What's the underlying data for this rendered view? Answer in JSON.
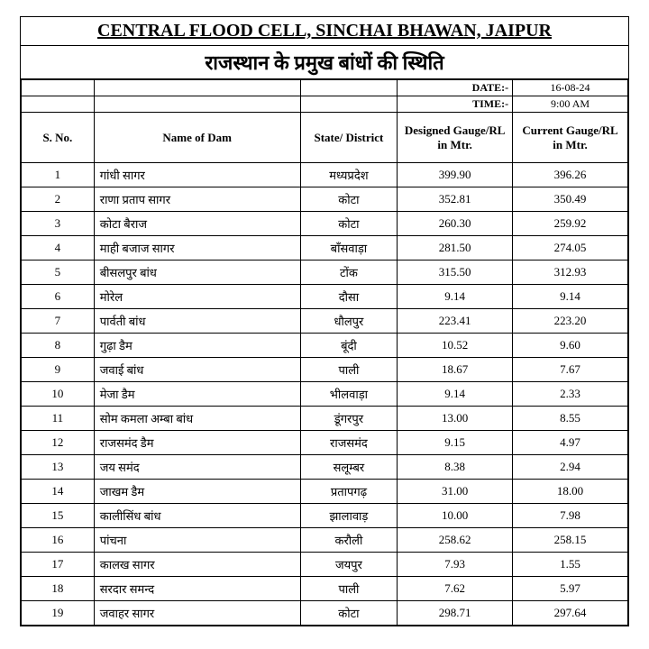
{
  "header": {
    "title": "CENTRAL FLOOD CELL, SINCHAI BHAWAN, JAIPUR",
    "subtitle": "राजस्थान के प्रमुख बांधों की स्थिति"
  },
  "meta": {
    "date_label": "DATE:-",
    "date_value": "16-08-24",
    "time_label": "TIME:-",
    "time_value": "9:00 AM"
  },
  "columns": {
    "sno": "S.  No.",
    "name": "Name of Dam",
    "district": "State/ District",
    "designed": "Designed Gauge/RL in Mtr.",
    "current": "Current Gauge/RL in Mtr."
  },
  "rows": [
    {
      "sno": "1",
      "name": "गांधी सागर",
      "district": "मध्यप्रदेश",
      "designed": "399.90",
      "current": "396.26"
    },
    {
      "sno": "2",
      "name": "राणा प्रताप सागर",
      "district": "कोटा",
      "designed": "352.81",
      "current": "350.49"
    },
    {
      "sno": "3",
      "name": "कोटा बैराज",
      "district": "कोटा",
      "designed": "260.30",
      "current": "259.92"
    },
    {
      "sno": "4",
      "name": "माही बजाज सागर",
      "district": "बाँसवाड़ा",
      "designed": "281.50",
      "current": "274.05"
    },
    {
      "sno": "5",
      "name": "बीसलपुर बांध",
      "district": "टोंक",
      "designed": "315.50",
      "current": "312.93"
    },
    {
      "sno": "6",
      "name": "मोरेल",
      "district": "दौसा",
      "designed": "9.14",
      "current": "9.14"
    },
    {
      "sno": "7",
      "name": "पार्वती बांध",
      "district": "धौलपुर",
      "designed": "223.41",
      "current": "223.20"
    },
    {
      "sno": "8",
      "name": "गुढ़ा डैम",
      "district": "बूंदी",
      "designed": "10.52",
      "current": "9.60"
    },
    {
      "sno": "9",
      "name": "जवाई बांध",
      "district": "पाली",
      "designed": "18.67",
      "current": "7.67"
    },
    {
      "sno": "10",
      "name": "मेजा डैम",
      "district": "भीलवाड़ा",
      "designed": "9.14",
      "current": "2.33"
    },
    {
      "sno": "11",
      "name": "सोम कमला अम्बा  बांध",
      "district": "डूंगरपुर",
      "designed": "13.00",
      "current": "8.55"
    },
    {
      "sno": "12",
      "name": "राजसमंद  डैम",
      "district": "राजसमंद",
      "designed": "9.15",
      "current": "4.97"
    },
    {
      "sno": "13",
      "name": "जय समंद",
      "district": "सलूम्बर",
      "designed": "8.38",
      "current": "2.94"
    },
    {
      "sno": "14",
      "name": "जाखम  डैम",
      "district": "प्रतापगढ़",
      "designed": "31.00",
      "current": "18.00"
    },
    {
      "sno": "15",
      "name": "कालीसिंध बांध",
      "district": "झालावाड़",
      "designed": "10.00",
      "current": "7.98"
    },
    {
      "sno": "16",
      "name": "पांचना",
      "district": "करौली",
      "designed": "258.62",
      "current": "258.15"
    },
    {
      "sno": "17",
      "name": "कालख सागर",
      "district": "जयपुर",
      "designed": "7.93",
      "current": "1.55"
    },
    {
      "sno": "18",
      "name": "सरदार समन्द",
      "district": "पाली",
      "designed": "7.62",
      "current": "5.97"
    },
    {
      "sno": "19",
      "name": "जवाहर सागर",
      "district": "कोटा",
      "designed": "298.71",
      "current": "297.64"
    }
  ]
}
